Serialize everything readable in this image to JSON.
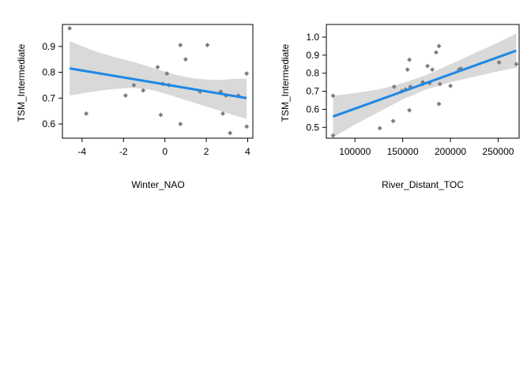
{
  "chart_data": [
    {
      "type": "scatter",
      "title": "",
      "xlabel": "Winter_NAO",
      "ylabel": "TSM_Intermediate",
      "xlim": [
        -4.95,
        4.25
      ],
      "ylim": [
        0.545,
        0.985
      ],
      "x_ticks": [
        -4,
        -2,
        0,
        2,
        4
      ],
      "x_tick_labels": [
        "-4",
        "-2",
        "0",
        "2",
        "4"
      ],
      "y_ticks": [
        0.6,
        0.7,
        0.8,
        0.9
      ],
      "y_tick_labels": [
        "0.6",
        "0.7",
        "0.8",
        "0.9"
      ],
      "grid": false,
      "points": [
        {
          "x": -4.6,
          "y": 0.97
        },
        {
          "x": -3.8,
          "y": 0.64
        },
        {
          "x": -1.9,
          "y": 0.71
        },
        {
          "x": -1.5,
          "y": 0.75
        },
        {
          "x": -1.05,
          "y": 0.73
        },
        {
          "x": -0.35,
          "y": 0.82
        },
        {
          "x": -0.2,
          "y": 0.635
        },
        {
          "x": -0.1,
          "y": 0.755
        },
        {
          "x": 0.1,
          "y": 0.795
        },
        {
          "x": 0.2,
          "y": 0.75
        },
        {
          "x": 0.75,
          "y": 0.905
        },
        {
          "x": 0.75,
          "y": 0.6
        },
        {
          "x": 1.0,
          "y": 0.85
        },
        {
          "x": 2.05,
          "y": 0.905
        },
        {
          "x": 1.7,
          "y": 0.725
        },
        {
          "x": 2.7,
          "y": 0.725
        },
        {
          "x": 2.8,
          "y": 0.64
        },
        {
          "x": 2.95,
          "y": 0.71
        },
        {
          "x": 3.15,
          "y": 0.565
        },
        {
          "x": 3.55,
          "y": 0.71
        },
        {
          "x": 3.95,
          "y": 0.795
        },
        {
          "x": 3.95,
          "y": 0.59
        }
      ],
      "fit": {
        "x": [
          -4.6,
          3.95
        ],
        "y": [
          0.815,
          0.7
        ],
        "ci_x": [
          -4.6,
          -3.5,
          -2.5,
          -1.5,
          -0.5,
          0.5,
          1.5,
          2.5,
          3.5,
          3.95
        ],
        "ci_lower": [
          0.71,
          0.725,
          0.735,
          0.74,
          0.73,
          0.705,
          0.68,
          0.655,
          0.63,
          0.62
        ],
        "ci_upper": [
          0.92,
          0.885,
          0.86,
          0.84,
          0.815,
          0.79,
          0.775,
          0.77,
          0.775,
          0.775
        ],
        "color": "#1E88E5",
        "band_color": "#D9D9D9"
      },
      "point_color": "#7F7F7F"
    },
    {
      "type": "scatter",
      "title": "",
      "xlabel": "River_Distant_TOC",
      "ylabel": "TSM_Intermediate",
      "xlim": [
        70000,
        272000
      ],
      "ylim": [
        0.44,
        1.07
      ],
      "x_ticks": [
        100000,
        150000,
        200000,
        250000
      ],
      "x_tick_labels": [
        "100000",
        "150000",
        "200000",
        "250000"
      ],
      "y_ticks": [
        0.5,
        0.6,
        0.7,
        0.8,
        0.9,
        1.0
      ],
      "y_tick_labels": [
        "0.5",
        "0.6",
        "0.7",
        "0.8",
        "0.9",
        "1.0"
      ],
      "grid": false,
      "points": [
        {
          "x": 77000,
          "y": 0.675
        },
        {
          "x": 77000,
          "y": 0.455
        },
        {
          "x": 126000,
          "y": 0.495
        },
        {
          "x": 140000,
          "y": 0.535
        },
        {
          "x": 141000,
          "y": 0.725
        },
        {
          "x": 149000,
          "y": 0.7
        },
        {
          "x": 153000,
          "y": 0.71
        },
        {
          "x": 155000,
          "y": 0.82
        },
        {
          "x": 157000,
          "y": 0.875
        },
        {
          "x": 158000,
          "y": 0.725
        },
        {
          "x": 157000,
          "y": 0.595
        },
        {
          "x": 171000,
          "y": 0.75
        },
        {
          "x": 171000,
          "y": 0.74
        },
        {
          "x": 176000,
          "y": 0.84
        },
        {
          "x": 181000,
          "y": 0.82
        },
        {
          "x": 178000,
          "y": 0.745
        },
        {
          "x": 185000,
          "y": 0.915
        },
        {
          "x": 188000,
          "y": 0.95
        },
        {
          "x": 188000,
          "y": 0.63
        },
        {
          "x": 189000,
          "y": 0.74
        },
        {
          "x": 200000,
          "y": 0.73
        },
        {
          "x": 209000,
          "y": 0.82
        },
        {
          "x": 211000,
          "y": 0.825
        },
        {
          "x": 251000,
          "y": 0.86
        },
        {
          "x": 269000,
          "y": 0.85
        }
      ],
      "fit": {
        "x": [
          77000,
          269000
        ],
        "y": [
          0.56,
          0.925
        ],
        "ci_x": [
          77000,
          100000,
          125000,
          150000,
          175000,
          200000,
          225000,
          250000,
          269000
        ],
        "ci_lower": [
          0.445,
          0.515,
          0.585,
          0.655,
          0.71,
          0.75,
          0.78,
          0.81,
          0.83
        ],
        "ci_upper": [
          0.675,
          0.69,
          0.71,
          0.745,
          0.79,
          0.85,
          0.91,
          0.97,
          1.02
        ],
        "color": "#1E88E5",
        "band_color": "#D9D9D9"
      },
      "point_color": "#7F7F7F"
    }
  ]
}
